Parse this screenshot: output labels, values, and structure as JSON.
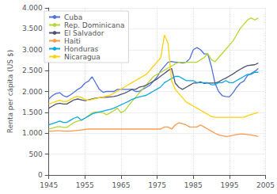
{
  "chart_data": {
    "type": "line",
    "y_label": "Renta per cápita (US $)",
    "x": [
      1945,
      1946,
      1947,
      1948,
      1949,
      1950,
      1951,
      1952,
      1953,
      1954,
      1955,
      1956,
      1957,
      1958,
      1959,
      1960,
      1961,
      1962,
      1963,
      1964,
      1965,
      1966,
      1967,
      1968,
      1969,
      1970,
      1971,
      1972,
      1973,
      1974,
      1975,
      1976,
      1977,
      1978,
      1979,
      1980,
      1981,
      1982,
      1983,
      1984,
      1985,
      1986,
      1987,
      1988,
      1989,
      1990,
      1991,
      1992,
      1993,
      1994,
      1995,
      1996,
      1997,
      1998,
      1999,
      2000,
      2001,
      2002,
      2003
    ],
    "series": [
      {
        "name": "Cuba",
        "values": [
          1820,
          1900,
          1950,
          1970,
          1900,
          1870,
          1920,
          1980,
          2050,
          2100,
          2200,
          2250,
          2350,
          2200,
          2050,
          1980,
          2000,
          2000,
          2000,
          2050,
          2050,
          2050,
          2050,
          2050,
          2000,
          2000,
          2050,
          2100,
          2150,
          2250,
          2350,
          2500,
          2600,
          2700,
          2720,
          2700,
          2700,
          2680,
          2700,
          2780,
          3000,
          3050,
          3000,
          2900,
          2900,
          2600,
          2200,
          2000,
          1900,
          1880,
          1870,
          1970,
          2100,
          2200,
          2250,
          2380,
          2430,
          2480,
          2550
        ]
      },
      {
        "name": "Rep. Dominicana",
        "values": [
          1100,
          1120,
          1150,
          1160,
          1140,
          1140,
          1200,
          1260,
          1290,
          1310,
          1360,
          1420,
          1490,
          1510,
          1500,
          1490,
          1440,
          1490,
          1540,
          1600,
          1490,
          1540,
          1650,
          1760,
          1860,
          1960,
          2060,
          2160,
          2260,
          2360,
          2410,
          2460,
          2510,
          2560,
          2610,
          2660,
          2700,
          2700,
          2700,
          2700,
          2700,
          2700,
          2760,
          2810,
          2910,
          2760,
          2710,
          2810,
          2910,
          3010,
          3110,
          3210,
          3360,
          3510,
          3610,
          3710,
          3760,
          3710,
          3760
        ]
      },
      {
        "name": "El Salvador",
        "values": [
          1600,
          1650,
          1700,
          1720,
          1700,
          1700,
          1750,
          1800,
          1820,
          1800,
          1780,
          1800,
          1820,
          1840,
          1850,
          1860,
          1860,
          1870,
          1880,
          1900,
          1930,
          1960,
          2000,
          2050,
          2050,
          2100,
          2120,
          2150,
          2200,
          2250,
          2300,
          2370,
          2430,
          2500,
          2550,
          2200,
          2100,
          2050,
          2100,
          2150,
          2200,
          2200,
          2230,
          2190,
          2200,
          2200,
          2200,
          2230,
          2280,
          2320,
          2370,
          2420,
          2480,
          2530,
          2580,
          2620,
          2630,
          2640,
          2680
        ]
      },
      {
        "name": "Haiti",
        "values": [
          1050,
          1050,
          1060,
          1060,
          1050,
          1050,
          1050,
          1060,
          1070,
          1080,
          1090,
          1100,
          1100,
          1100,
          1100,
          1100,
          1100,
          1100,
          1100,
          1100,
          1100,
          1100,
          1100,
          1100,
          1100,
          1100,
          1100,
          1100,
          1100,
          1100,
          1100,
          1100,
          1150,
          1150,
          1100,
          1200,
          1250,
          1230,
          1200,
          1150,
          1150,
          1150,
          1200,
          1150,
          1100,
          1050,
          1000,
          960,
          940,
          920,
          930,
          950,
          970,
          980,
          980,
          970,
          960,
          940,
          920
        ]
      },
      {
        "name": "Honduras",
        "values": [
          1200,
          1230,
          1260,
          1290,
          1260,
          1260,
          1310,
          1360,
          1390,
          1310,
          1360,
          1410,
          1460,
          1490,
          1510,
          1530,
          1550,
          1570,
          1600,
          1640,
          1680,
          1720,
          1760,
          1810,
          1840,
          1870,
          1890,
          1910,
          1960,
          2010,
          2060,
          2110,
          2210,
          2260,
          2310,
          2360,
          2360,
          2310,
          2260,
          2260,
          2260,
          2210,
          2210,
          2210,
          2210,
          2160,
          2160,
          2210,
          2210,
          2260,
          2210,
          2210,
          2260,
          2310,
          2360,
          2410,
          2410,
          2460,
          2460
        ]
      },
      {
        "name": "Nicaragua",
        "values": [
          1700,
          1730,
          1760,
          1790,
          1760,
          1760,
          1810,
          1860,
          1880,
          1860,
          1810,
          1790,
          1810,
          1830,
          1850,
          1870,
          1890,
          1910,
          1960,
          2010,
          2060,
          2110,
          2160,
          2210,
          2260,
          2310,
          2360,
          2410,
          2510,
          2610,
          2710,
          2810,
          3350,
          3150,
          2250,
          2050,
          1950,
          1850,
          1750,
          1700,
          1650,
          1600,
          1550,
          1500,
          1450,
          1400,
          1380,
          1380,
          1380,
          1380,
          1380,
          1380,
          1380,
          1380,
          1380,
          1420,
          1450,
          1470,
          1500
        ]
      }
    ],
    "xlim": [
      1945,
      2005
    ],
    "xticks": [
      1945,
      1955,
      1965,
      1975,
      1985,
      1995,
      2005
    ],
    "ylim": [
      0,
      4000
    ],
    "yticks": [
      0,
      500,
      {
        "value": 1000,
        "label": "1.000"
      },
      {
        "value": 1500,
        "label": "1.500"
      },
      {
        "value": 2000,
        "label": "2.000"
      },
      {
        "value": 2500,
        "label": "2.500"
      },
      {
        "value": 3000,
        "label": "3.000"
      },
      {
        "value": 3500,
        "label": "3.500"
      },
      {
        "value": 4000,
        "label": "4.000"
      }
    ],
    "grid": true,
    "legend": "upper left"
  }
}
